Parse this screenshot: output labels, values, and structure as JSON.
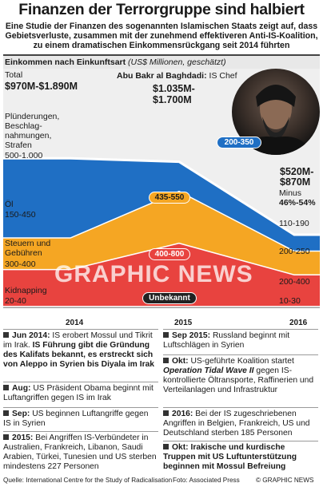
{
  "title": "Finanzen der Terrorgruppe sind halbiert",
  "subtitle": "Eine Studie der Finanzen des sogenannten Islamischen Staats zeigt auf, dass Gebietsverluste, zusammen mit der zunehmend effektiveren Anti-IS-Koalition, zu einem dramatischen Einkommensrückgang seit 2014 führten",
  "header": {
    "label": "Einkommen nach Einkunftsart",
    "unit": "(US$ Millionen, geschätzt)"
  },
  "photo": {
    "name": "Abu Bakr al Baghdadi:",
    "role": "IS Chef"
  },
  "labels": {
    "total_2014_label": "Total",
    "total_2014": "$970M-$1.890M",
    "total_2015": "$1.035M-",
    "total_2015b": "$1.700M",
    "total_2016": "$520M-",
    "total_2016b": "$870M",
    "change_2016": "Minus",
    "change_2016b": "46%-54%",
    "s1_name": "Plünderungen, Beschlag-nahmungen, Strafen",
    "s1_2014": "500-1.000",
    "s1_2015": "200-350",
    "s1_2016": "110-190",
    "s2_name": "Öl",
    "s2_2014": "150-450",
    "s2_2015": "435-550",
    "s2_2016": "200-250",
    "s3_name": "Steuern und Gebühren",
    "s3_2014": "300-400",
    "s3_2015": "400-800",
    "s3_2016": "200-400",
    "s4_name": "Kidnapping",
    "s4_2014": "20-40",
    "s4_2015": "Unbekannt",
    "s4_2016": "10-30",
    "watermark": "GRAPHIC NEWS"
  },
  "chart_data": {
    "type": "area",
    "x": [
      "2014",
      "2015",
      "2016"
    ],
    "series": [
      {
        "name": "Kidnapping",
        "values": [
          "20-40",
          "Unbekannt",
          "10-30"
        ],
        "color": "#9a9a9a"
      },
      {
        "name": "Steuern und Gebühren",
        "values": [
          "300-400",
          "400-800",
          "200-400"
        ],
        "color": "#e8433f"
      },
      {
        "name": "Öl",
        "values": [
          "150-450",
          "435-550",
          "200-250"
        ],
        "color": "#f5a623"
      },
      {
        "name": "Plünderungen, Beschlag-nahmungen, Strafen",
        "values": [
          "500-1.000",
          "200-350",
          "110-190"
        ],
        "color": "#1f6fc4"
      }
    ],
    "totals": [
      "$970M-$1.890M",
      "$1.035M-$1.700M",
      "$520M-$870M"
    ]
  },
  "timeline": {
    "left": [
      {
        "date": "Jun 2014:",
        "text": "IS erobert Mossul und Tikrit im Irak.",
        "bold": "IS Führung gibt die Gründung des Kalifats bekannt, es erstreckt sich von Aleppo in Syrien bis Diyala im Irak"
      },
      {
        "date": "Aug:",
        "text": "US Präsident Obama beginnt mit Luftangriffen gegen IS im Irak",
        "bold": ""
      },
      {
        "date": "Sep:",
        "text": "US beginnen Luftangriffe gegen IS in Syrien",
        "bold": ""
      },
      {
        "date": "2015:",
        "text": "Bei Angriffen IS-Verbündeter in Australien, Frankreich, Libanon, Saudi Arabien, Türkei, Tunesien und US sterben mindestens 227 Personen",
        "bold": ""
      }
    ],
    "right": [
      {
        "date": "Sep 2015:",
        "text": "Russland beginnt mit Luftschlägen in Syrien",
        "bold": ""
      },
      {
        "date": "Okt:",
        "text": "US-geführte Koalition startet",
        "bold": "Operation Tidal Wave II",
        "text2": "gegen IS-kontrollierte Öltransporte, Raffinerien und Verteilanlagen und Infrastruktur"
      },
      {
        "date": "2016:",
        "text": "Bei der IS zugeschriebenen Angriffen in Belgien, Frankreich, US und Deutschland sterben 185 Personen",
        "bold": ""
      },
      {
        "date": "Okt:",
        "text": "",
        "bold": "Irakische und kurdische Truppen mit US Luftunterstützung beginnen mit Mossul Befreiung"
      }
    ]
  },
  "footer": {
    "source": "Quelle: International Centre for the Study of Radicalisation",
    "photo": "Foto: Associated Press",
    "copyright": "© GRAPHIC NEWS"
  }
}
